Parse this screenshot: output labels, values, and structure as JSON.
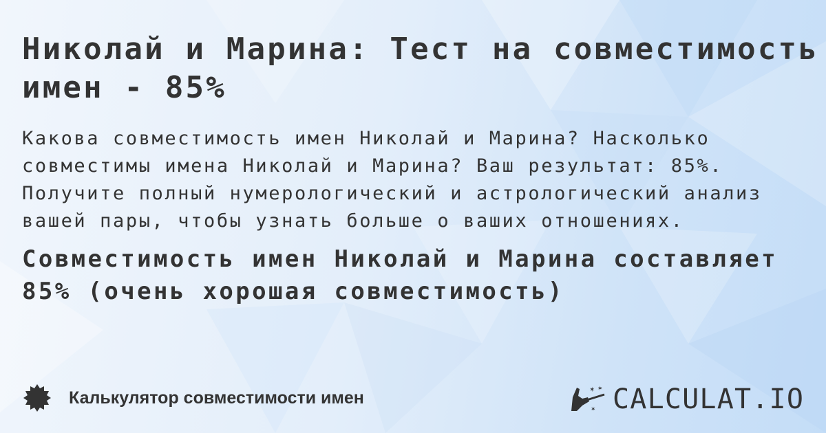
{
  "title": "Николай и Марина: Тест на совместимость имен - 85%",
  "description": "Какова совместимость имен Николай и Марина? Насколько\nсовместимы имена Николай и Марина? Ваш результат: 85%.\nПолучите полный нумерологический и астрологический анализ\nвашей пары, чтобы узнать больше о ваших отношениях.",
  "result": "Совместимость имен Николай и Марина составляет 85% (очень хорошая совместимость)",
  "footer": {
    "label": "Калькулятор совместимости имен",
    "icon": "badge-star-icon"
  },
  "logo": {
    "text": "CALCULAT.IO",
    "icon": "magic-hand-icon"
  },
  "colors": {
    "text": "#333333",
    "background": "#dbe9f9"
  }
}
